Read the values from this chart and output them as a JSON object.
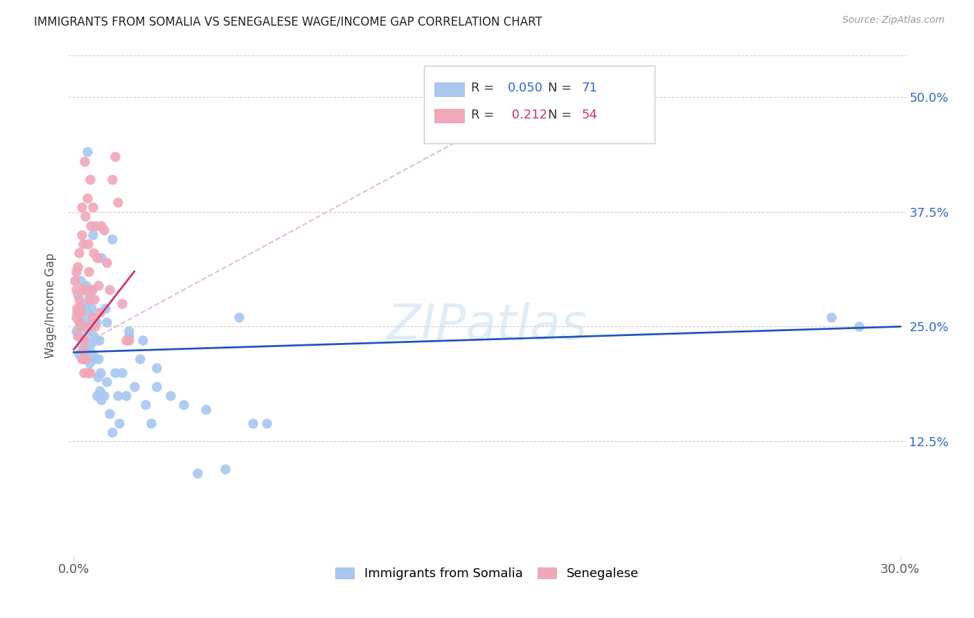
{
  "title": "IMMIGRANTS FROM SOMALIA VS SENEGALESE WAGE/INCOME GAP CORRELATION CHART",
  "source": "Source: ZipAtlas.com",
  "ylabel": "Wage/Income Gap",
  "yticks": [
    "50.0%",
    "37.5%",
    "25.0%",
    "12.5%"
  ],
  "ytick_vals": [
    0.5,
    0.375,
    0.25,
    0.125
  ],
  "xlim": [
    0.0,
    0.3
  ],
  "ylim": [
    0.0,
    0.545
  ],
  "legend_somalia_r": "0.050",
  "legend_somalia_n": "71",
  "legend_senegal_r": "0.212",
  "legend_senegal_n": "54",
  "somalia_color": "#a8c8f0",
  "senegal_color": "#f0a8b8",
  "somalia_line_color": "#2255bb",
  "senegal_line_color": "#cc3366",
  "dashed_line_color": "#e0b8c0",
  "background_color": "#ffffff",
  "watermark": "ZIPatlas",
  "somalia_x": [
    0.0008,
    0.0012,
    0.0015,
    0.0018,
    0.002,
    0.0022,
    0.0025,
    0.0028,
    0.003,
    0.0032,
    0.0035,
    0.0038,
    0.004,
    0.0042,
    0.0045,
    0.0048,
    0.005,
    0.0052,
    0.0055,
    0.0058,
    0.006,
    0.0062,
    0.0065,
    0.0068,
    0.007,
    0.0072,
    0.0075,
    0.0078,
    0.008,
    0.0082,
    0.0085,
    0.0088,
    0.009,
    0.0092,
    0.0095,
    0.0098,
    0.01,
    0.011,
    0.0115,
    0.012,
    0.013,
    0.014,
    0.015,
    0.0165,
    0.0175,
    0.019,
    0.02,
    0.022,
    0.024,
    0.026,
    0.028,
    0.03,
    0.035,
    0.04,
    0.045,
    0.048,
    0.055,
    0.06,
    0.065,
    0.07,
    0.01,
    0.012,
    0.014,
    0.016,
    0.02,
    0.025,
    0.03,
    0.005,
    0.007,
    0.275,
    0.285
  ],
  "somalia_y": [
    0.245,
    0.265,
    0.285,
    0.22,
    0.24,
    0.26,
    0.3,
    0.23,
    0.25,
    0.27,
    0.215,
    0.235,
    0.255,
    0.275,
    0.295,
    0.225,
    0.245,
    0.265,
    0.285,
    0.21,
    0.23,
    0.25,
    0.27,
    0.29,
    0.22,
    0.24,
    0.26,
    0.215,
    0.235,
    0.255,
    0.175,
    0.195,
    0.215,
    0.235,
    0.18,
    0.2,
    0.17,
    0.175,
    0.27,
    0.19,
    0.155,
    0.135,
    0.2,
    0.145,
    0.2,
    0.175,
    0.24,
    0.185,
    0.215,
    0.165,
    0.145,
    0.205,
    0.175,
    0.165,
    0.09,
    0.16,
    0.095,
    0.26,
    0.145,
    0.145,
    0.325,
    0.255,
    0.345,
    0.175,
    0.245,
    0.235,
    0.185,
    0.44,
    0.35,
    0.26,
    0.25
  ],
  "senegal_x": [
    0.0005,
    0.0008,
    0.001,
    0.0012,
    0.0015,
    0.0018,
    0.002,
    0.0022,
    0.0025,
    0.0028,
    0.003,
    0.0032,
    0.0035,
    0.0038,
    0.004,
    0.0042,
    0.0045,
    0.0048,
    0.005,
    0.0052,
    0.0055,
    0.0058,
    0.006,
    0.0062,
    0.0065,
    0.0068,
    0.007,
    0.0072,
    0.0075,
    0.0078,
    0.008,
    0.0085,
    0.009,
    0.0095,
    0.01,
    0.011,
    0.012,
    0.013,
    0.014,
    0.015,
    0.016,
    0.0175,
    0.019,
    0.02,
    0.001,
    0.0015,
    0.002,
    0.0025,
    0.003,
    0.0035,
    0.004,
    0.0045,
    0.005,
    0.006
  ],
  "senegal_y": [
    0.3,
    0.26,
    0.31,
    0.27,
    0.24,
    0.33,
    0.28,
    0.25,
    0.27,
    0.35,
    0.38,
    0.29,
    0.34,
    0.2,
    0.43,
    0.37,
    0.29,
    0.25,
    0.39,
    0.34,
    0.31,
    0.28,
    0.41,
    0.36,
    0.29,
    0.26,
    0.38,
    0.33,
    0.28,
    0.25,
    0.36,
    0.325,
    0.295,
    0.265,
    0.36,
    0.355,
    0.32,
    0.29,
    0.41,
    0.435,
    0.385,
    0.275,
    0.235,
    0.235,
    0.29,
    0.315,
    0.255,
    0.265,
    0.215,
    0.225,
    0.235,
    0.215,
    0.2,
    0.2
  ],
  "somalia_line_x": [
    0.0,
    0.3
  ],
  "somalia_line_y": [
    0.222,
    0.25
  ],
  "senegal_line_x": [
    0.0,
    0.022
  ],
  "senegal_line_y": [
    0.225,
    0.31
  ],
  "dashed_line_x": [
    0.0,
    0.175
  ],
  "dashed_line_y": [
    0.225,
    0.51
  ]
}
